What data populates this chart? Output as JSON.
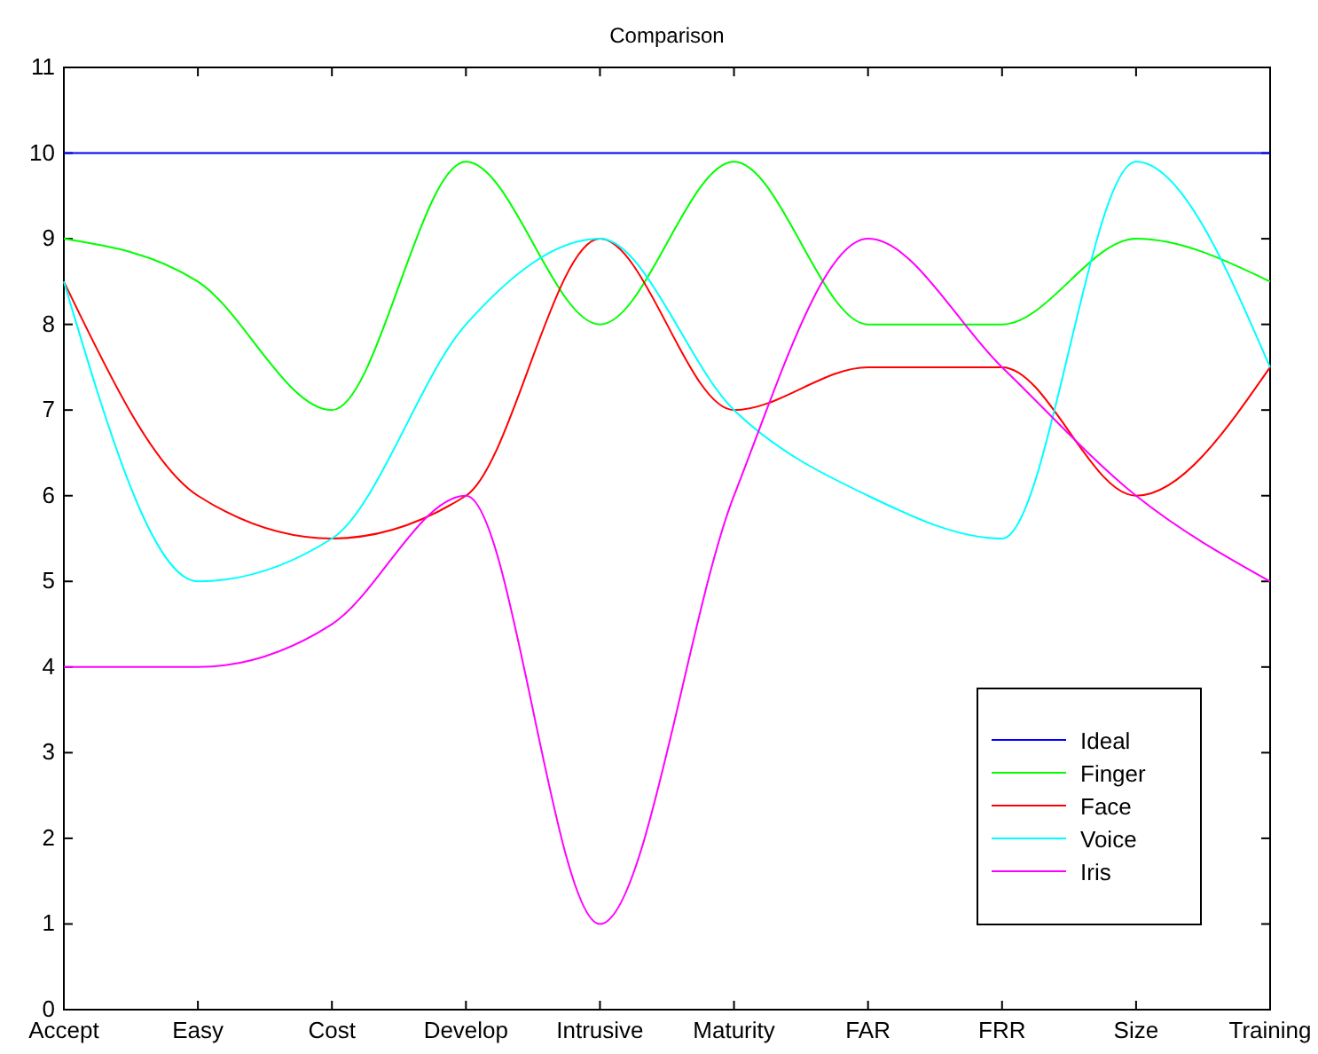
{
  "chart_data": {
    "type": "line",
    "title": "Comparison",
    "categories": [
      "Accept",
      "Easy",
      "Cost",
      "Develop",
      "Intrusive",
      "Maturity",
      "FAR",
      "FRR",
      "Size",
      "Training"
    ],
    "ylim": [
      0,
      11
    ],
    "yticks": [
      0,
      1,
      2,
      3,
      4,
      5,
      6,
      7,
      8,
      9,
      10,
      11
    ],
    "grid": false,
    "legend": "bottom right",
    "marker": "none",
    "line_style": "solid",
    "series": [
      {
        "name": "Ideal",
        "color": "#0000ff",
        "values": [
          10,
          10,
          10,
          10,
          10,
          10,
          10,
          10,
          10,
          10
        ]
      },
      {
        "name": "Finger",
        "color": "#00ff00",
        "values": [
          9,
          8.5,
          7,
          9.9,
          8,
          9.9,
          8,
          8,
          9,
          8.5
        ]
      },
      {
        "name": "Face",
        "color": "#ff0000",
        "values": [
          8.5,
          6,
          5.5,
          6,
          9,
          7,
          7.5,
          7.5,
          6,
          7.5
        ]
      },
      {
        "name": "Voice",
        "color": "#00ffff",
        "values": [
          8.5,
          5,
          5.5,
          8,
          9,
          7,
          6,
          5.5,
          9.9,
          7.5
        ]
      },
      {
        "name": "Iris",
        "color": "#ff00ff",
        "values": [
          4,
          4,
          4.5,
          6,
          1,
          6,
          9,
          7.5,
          6,
          5
        ]
      }
    ]
  }
}
